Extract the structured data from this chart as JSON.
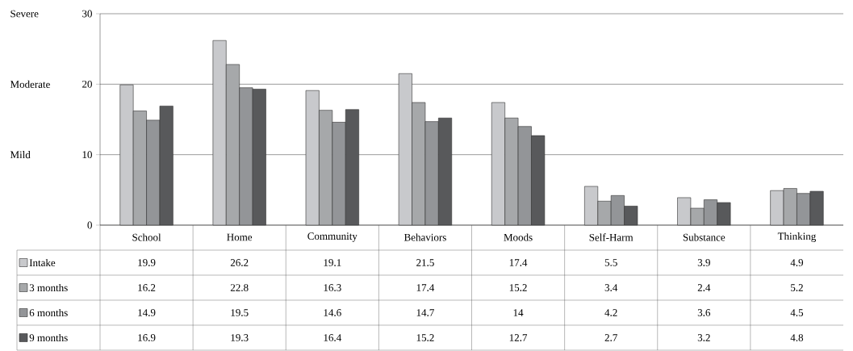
{
  "chart_data": {
    "type": "bar",
    "categories": [
      "School",
      "Home",
      "Community",
      "Behaviors",
      "Moods",
      "Self-Harm",
      "Substance",
      "Thinking"
    ],
    "series": [
      {
        "name": "Intake",
        "color": "#c8c9cc",
        "values": [
          19.9,
          26.2,
          19.1,
          21.5,
          17.4,
          5.5,
          3.9,
          4.9
        ]
      },
      {
        "name": "3 months",
        "color": "#a6a8aa",
        "values": [
          16.2,
          22.8,
          16.3,
          17.4,
          15.2,
          3.4,
          2.4,
          5.2
        ]
      },
      {
        "name": "6 months",
        "color": "#939598",
        "values": [
          14.9,
          19.5,
          14.6,
          14.7,
          14,
          4.2,
          3.6,
          4.5
        ]
      },
      {
        "name": "9 months",
        "color": "#58595b",
        "values": [
          16.9,
          19.3,
          16.4,
          15.2,
          12.7,
          2.7,
          3.2,
          4.8
        ]
      }
    ],
    "ylim": [
      0,
      30
    ],
    "yticks": [
      0,
      10,
      20,
      30
    ],
    "grid": "y",
    "legend": "bottom",
    "data_labels": true,
    "annotations": [
      "Severe",
      "Moderate",
      "Mild"
    ]
  }
}
